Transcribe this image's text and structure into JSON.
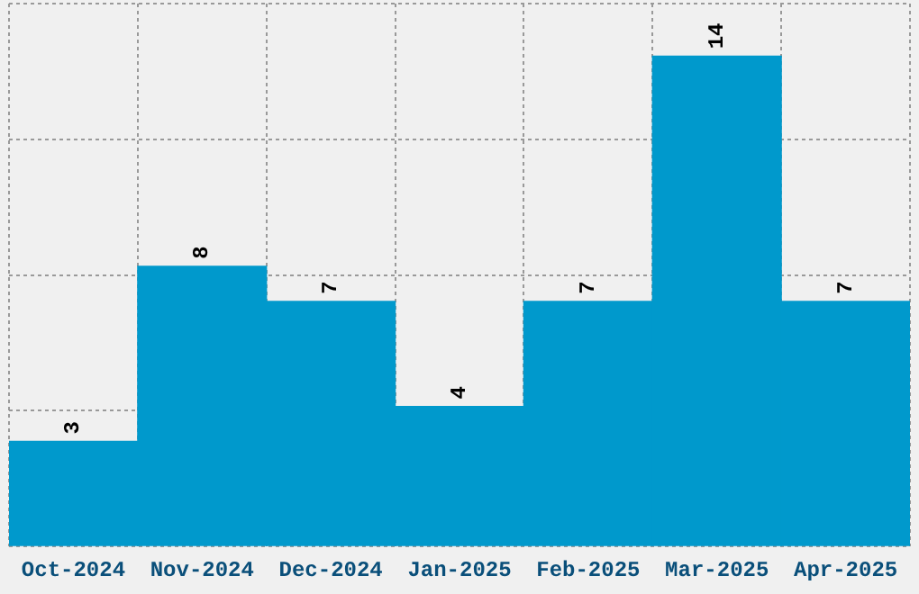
{
  "chart_data": {
    "type": "bar",
    "categories": [
      "Oct-2024",
      "Nov-2024",
      "Dec-2024",
      "Jan-2025",
      "Feb-2025",
      "Mar-2025",
      "Apr-2025"
    ],
    "values": [
      3,
      8,
      7,
      4,
      7,
      14,
      7
    ],
    "color": "#0099cc",
    "data_labels": true,
    "grid": true,
    "tick_labels": "x",
    "ylim": [
      0,
      15.5
    ],
    "yticks": [
      {
        "value": 0,
        "label": null
      },
      {
        "value": 3.875,
        "label": null
      },
      {
        "value": 7.75,
        "label": null
      },
      {
        "value": 11.625,
        "label": null
      },
      {
        "value": 15.5,
        "label": null
      }
    ]
  }
}
